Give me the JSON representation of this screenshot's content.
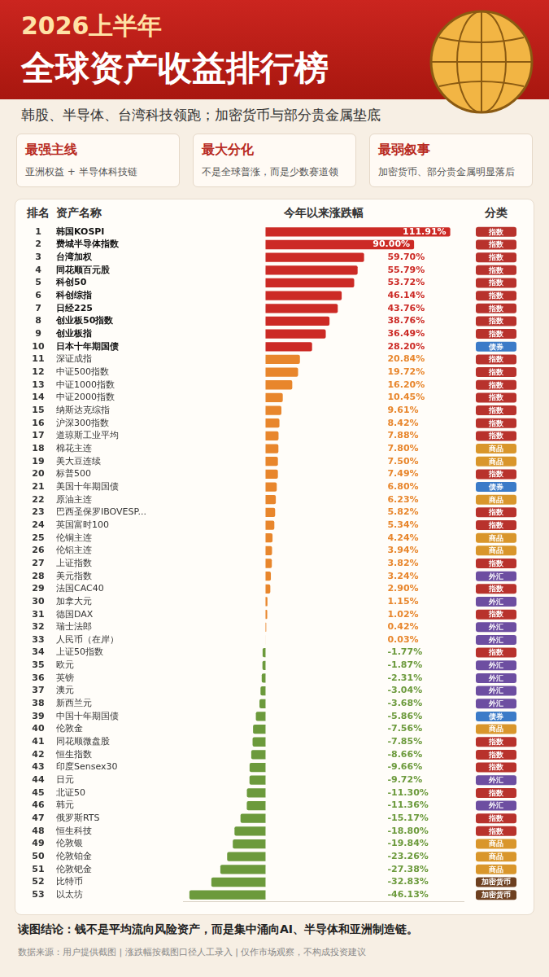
{
  "header": {
    "kicker": "2026上半年",
    "title": "全球资产收益排行榜",
    "subtitle": "韩股、半导体、台湾科技领跑；加密货币与部分贵金属垫底"
  },
  "cards": [
    {
      "title": "最强主线",
      "text": "亚洲权益 + 半导体科技链"
    },
    {
      "title": "最大分化",
      "text": "不是全球普涨，而是少数赛道领"
    },
    {
      "title": "最弱叙事",
      "text": "加密货币、部分贵金属明显落后"
    }
  ],
  "chart_data": {
    "type": "bar",
    "orientation": "horizontal",
    "column_headers": [
      "排名",
      "资产名称",
      "今年以来涨跌幅",
      "分类"
    ],
    "ranks": [
      1,
      2,
      3,
      4,
      5,
      6,
      7,
      8,
      9,
      10,
      11,
      12,
      13,
      14,
      15,
      16,
      17,
      18,
      19,
      20,
      21,
      22,
      23,
      24,
      25,
      26,
      27,
      28,
      29,
      30,
      31,
      32,
      33,
      34,
      35,
      36,
      37,
      38,
      39,
      40,
      41,
      42,
      43,
      44,
      45,
      46,
      47,
      48,
      49,
      50,
      51,
      52,
      53
    ],
    "categories": [
      "韩国KOSPI",
      "费城半导体指数",
      "台湾加权",
      "同花顺百元股",
      "科创50",
      "科创综指",
      "日经225",
      "创业板50指数",
      "创业板指",
      "日本十年期国债",
      "深证成指",
      "中证500指数",
      "中证1000指数",
      "中证2000指数",
      "纳斯达克综指",
      "沪深300指数",
      "道琼斯工业平均",
      "棉花主连",
      "美大豆连续",
      "标普500",
      "美国十年期国债",
      "原油主连",
      "巴西圣保罗IBOVESP...",
      "英国富时100",
      "伦铜主连",
      "伦铝主连",
      "上证指数",
      "美元指数",
      "法国CAC40",
      "加拿大元",
      "德国DAX",
      "瑞士法郎",
      "人民币（在岸）",
      "上证50指数",
      "欧元",
      "英镑",
      "澳元",
      "新西兰元",
      "中国十年期国债",
      "伦敦金",
      "同花顺微盘股",
      "恒生指数",
      "印度Sensex30",
      "日元",
      "北证50",
      "韩元",
      "俄罗斯RTS",
      "恒生科技",
      "伦敦银",
      "伦敦铂金",
      "伦敦钯金",
      "比特币",
      "以太坊"
    ],
    "values": [
      111.91,
      90.0,
      59.7,
      55.79,
      53.72,
      46.14,
      43.76,
      38.76,
      36.49,
      28.2,
      20.84,
      19.72,
      16.2,
      10.45,
      9.61,
      8.42,
      7.88,
      7.8,
      7.5,
      7.49,
      6.8,
      6.23,
      5.82,
      5.34,
      4.24,
      3.94,
      3.82,
      3.24,
      2.9,
      1.15,
      1.02,
      0.42,
      0.03,
      -1.77,
      -1.87,
      -2.31,
      -3.04,
      -3.68,
      -5.86,
      -7.56,
      -7.85,
      -8.66,
      -9.66,
      -9.72,
      -11.3,
      -11.36,
      -15.17,
      -18.8,
      -19.84,
      -23.26,
      -27.38,
      -32.83,
      -46.13
    ],
    "value_labels": [
      "111.91%",
      "90.00%",
      "59.70%",
      "55.79%",
      "53.72%",
      "46.14%",
      "43.76%",
      "38.76%",
      "36.49%",
      "28.20%",
      "20.84%",
      "19.72%",
      "16.20%",
      "10.45%",
      "9.61%",
      "8.42%",
      "7.88%",
      "7.80%",
      "7.50%",
      "7.49%",
      "6.80%",
      "6.23%",
      "5.82%",
      "5.34%",
      "4.24%",
      "3.94%",
      "3.82%",
      "3.24%",
      "2.90%",
      "1.15%",
      "1.02%",
      "0.42%",
      "0.03%",
      "-1.77%",
      "-1.87%",
      "-2.31%",
      "-3.04%",
      "-3.68%",
      "-5.86%",
      "-7.56%",
      "-7.85%",
      "-8.66%",
      "-9.66%",
      "-9.72%",
      "-11.30%",
      "-11.36%",
      "-15.17%",
      "-18.80%",
      "-19.84%",
      "-23.26%",
      "-27.38%",
      "-32.83%",
      "-46.13%"
    ],
    "colors": [
      "#cc2a25",
      "#cc2a25",
      "#cc2a25",
      "#cc2a25",
      "#cc2a25",
      "#cc2a25",
      "#cc2a25",
      "#cc2a25",
      "#cc2a25",
      "#cc2a25",
      "#e8862c",
      "#e8862c",
      "#e8862c",
      "#e8862c",
      "#e8862c",
      "#e8862c",
      "#e8862c",
      "#e8862c",
      "#e8862c",
      "#e8862c",
      "#e8862c",
      "#e8862c",
      "#e8862c",
      "#e8862c",
      "#e8862c",
      "#e8862c",
      "#e8862c",
      "#e8862c",
      "#e8862c",
      "#e8862c",
      "#e8862c",
      "#e8862c",
      "#e8862c",
      "#6c9a3c",
      "#6c9a3c",
      "#6c9a3c",
      "#6c9a3c",
      "#6c9a3c",
      "#6c9a3c",
      "#6c9a3c",
      "#6c9a3c",
      "#6c9a3c",
      "#6c9a3c",
      "#6c9a3c",
      "#6c9a3c",
      "#6c9a3c",
      "#6c9a3c",
      "#6c9a3c",
      "#6c9a3c",
      "#6c9a3c",
      "#6c9a3c",
      "#6c9a3c",
      "#6c9a3c"
    ],
    "tags": [
      "指数",
      "指数",
      "指数",
      "指数",
      "指数",
      "指数",
      "指数",
      "指数",
      "指数",
      "债券",
      "指数",
      "指数",
      "指数",
      "指数",
      "指数",
      "指数",
      "指数",
      "商品",
      "商品",
      "指数",
      "债券",
      "商品",
      "指数",
      "指数",
      "商品",
      "商品",
      "指数",
      "外汇",
      "指数",
      "外汇",
      "指数",
      "外汇",
      "外汇",
      "指数",
      "外汇",
      "外汇",
      "外汇",
      "外汇",
      "债券",
      "商品",
      "指数",
      "指数",
      "指数",
      "外汇",
      "指数",
      "外汇",
      "指数",
      "指数",
      "商品",
      "商品",
      "商品",
      "加密货币",
      "加密货币"
    ],
    "tag_colors": [
      "#b8322c",
      "#b8322c",
      "#b8322c",
      "#b8322c",
      "#b8322c",
      "#b8322c",
      "#b8322c",
      "#b8322c",
      "#b8322c",
      "#3b7bc8",
      "#b8322c",
      "#b8322c",
      "#b8322c",
      "#b8322c",
      "#b8322c",
      "#b8322c",
      "#b8322c",
      "#d9962b",
      "#d9962b",
      "#b8322c",
      "#3b7bc8",
      "#d9962b",
      "#b8322c",
      "#b8322c",
      "#d9962b",
      "#d9962b",
      "#b8322c",
      "#6d4ea1",
      "#b8322c",
      "#6d4ea1",
      "#b8322c",
      "#6d4ea1",
      "#6d4ea1",
      "#b8322c",
      "#6d4ea1",
      "#6d4ea1",
      "#6d4ea1",
      "#6d4ea1",
      "#3b7bc8",
      "#d9962b",
      "#b8322c",
      "#b8322c",
      "#b8322c",
      "#6d4ea1",
      "#b8322c",
      "#6d4ea1",
      "#b8322c",
      "#b8322c",
      "#d9962b",
      "#d9962b",
      "#d9962b",
      "#6e4020",
      "#6e4020"
    ],
    "xlim": [
      -50,
      120
    ],
    "tick_labels": false,
    "grid": false,
    "data_labels": true
  },
  "footer": {
    "conclusion": "读图结论：钱不是平均流向风险资产，而是集中涌向AI、半导体和亚洲制造链。",
    "source": "数据来源：用户提供截图 | 涨跌幅按截图口径人工录入 | 仅作市场观察，不构成投资建议"
  }
}
